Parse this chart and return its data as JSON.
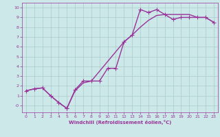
{
  "xlabel": "Windchill (Refroidissement éolien,°C)",
  "xlim": [
    -0.5,
    23.5
  ],
  "ylim": [
    -0.7,
    10.5
  ],
  "xticks": [
    0,
    1,
    2,
    3,
    4,
    5,
    6,
    7,
    8,
    9,
    10,
    11,
    12,
    13,
    14,
    15,
    16,
    17,
    18,
    19,
    20,
    21,
    22,
    23
  ],
  "yticks": [
    0,
    1,
    2,
    3,
    4,
    5,
    6,
    7,
    8,
    9,
    10
  ],
  "ytick_labels": [
    "-0",
    "1",
    "2",
    "3",
    "4",
    "5",
    "6",
    "7",
    "8",
    "9",
    "10"
  ],
  "bg_color": "#cce8e8",
  "grid_color": "#aacccc",
  "line_color": "#993399",
  "line_width": 1.0,
  "marker": "+",
  "marker_size": 4,
  "marker_ew": 0.8,
  "series1_x": [
    0,
    1,
    2,
    3,
    4,
    5,
    5,
    6,
    7,
    8,
    9,
    10,
    11,
    12,
    13,
    14,
    15,
    16,
    17,
    18,
    19,
    20,
    21,
    22,
    23
  ],
  "series1_y": [
    1.5,
    1.7,
    1.8,
    1.0,
    0.3,
    -0.3,
    -0.3,
    1.6,
    2.5,
    2.5,
    2.5,
    3.8,
    3.8,
    6.5,
    7.2,
    9.8,
    9.5,
    9.8,
    9.3,
    8.8,
    9.0,
    9.0,
    9.0,
    9.0,
    8.5
  ],
  "series2_x": [
    0,
    1,
    2,
    3,
    4,
    5,
    6,
    7,
    8,
    9,
    10,
    11,
    12,
    13,
    14,
    15,
    16,
    17,
    18,
    19,
    20,
    21,
    22,
    23
  ],
  "series2_y": [
    1.5,
    1.7,
    1.8,
    1.0,
    0.3,
    -0.3,
    1.5,
    2.3,
    2.5,
    3.5,
    4.5,
    5.5,
    6.5,
    7.2,
    8.0,
    8.7,
    9.2,
    9.3,
    9.3,
    9.3,
    9.3,
    9.0,
    9.0,
    8.5
  ]
}
